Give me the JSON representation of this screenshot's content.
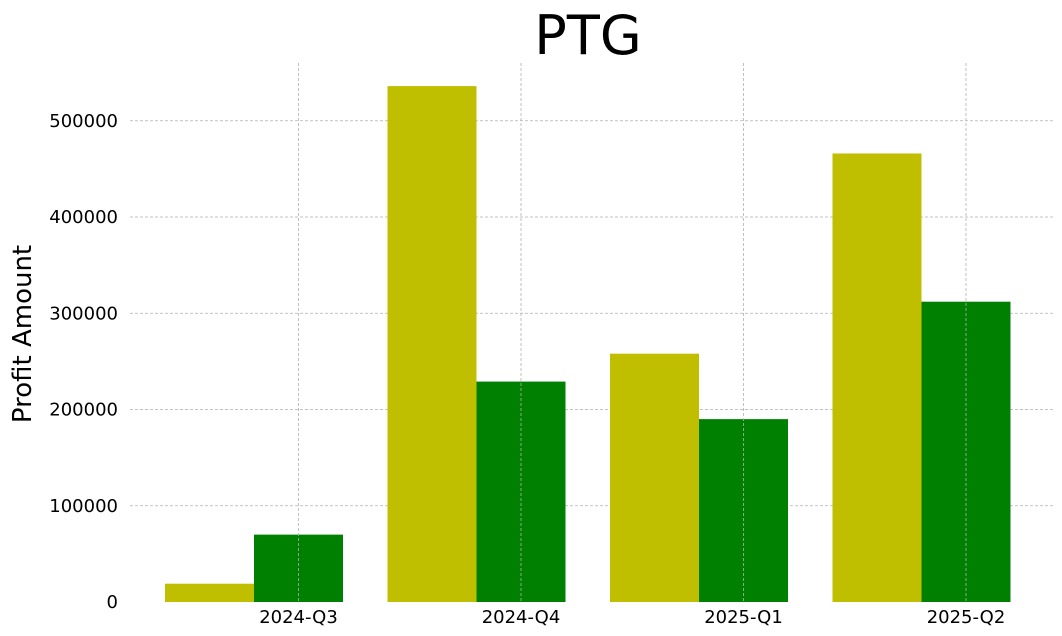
{
  "chart_data": {
    "type": "bar",
    "title": "PTG",
    "xlabel": "",
    "ylabel": "Profit Amount",
    "categories": [
      "2024-Q3",
      "2024-Q4",
      "2025-Q1",
      "2025-Q2"
    ],
    "series": [
      {
        "color": "#bfbf00",
        "values": [
          19000,
          536000,
          258000,
          466000
        ]
      },
      {
        "color": "#008000",
        "values": [
          70000,
          229000,
          190000,
          312000
        ]
      }
    ],
    "yticks": [
      0,
      100000,
      200000,
      300000,
      400000,
      500000
    ],
    "ylim": [
      0,
      560000
    ],
    "grid": true,
    "legend": "none"
  }
}
